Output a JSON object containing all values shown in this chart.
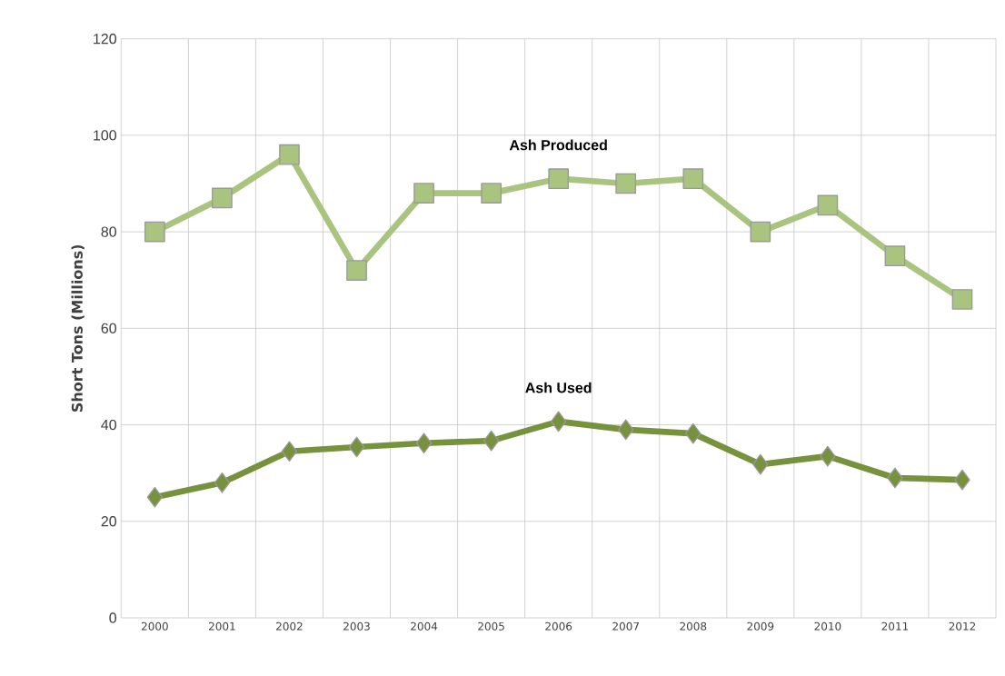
{
  "chart_data": {
    "type": "line",
    "ylabel": "Short Tons (Millions)",
    "categories": [
      "2000",
      "2001",
      "2002",
      "2003",
      "2004",
      "2005",
      "2006",
      "2007",
      "2008",
      "2009",
      "2010",
      "2011",
      "2012"
    ],
    "series": [
      {
        "name": "Ash Produced",
        "color": "#a9c47f",
        "marker": "square",
        "values": [
          80,
          87,
          96,
          72,
          88,
          88,
          91,
          90,
          91,
          80,
          85.5,
          75,
          66
        ]
      },
      {
        "name": "Ash Used",
        "color": "#76923c",
        "marker": "diamond",
        "values": [
          25,
          28,
          34.5,
          35.4,
          36.2,
          36.7,
          40.7,
          39,
          38.2,
          31.8,
          33.5,
          29,
          28.6
        ]
      }
    ],
    "ylim": [
      0,
      120
    ],
    "yticks": [
      0,
      20,
      40,
      60,
      80,
      100,
      120
    ],
    "grid": true,
    "line_style": "solid"
  }
}
